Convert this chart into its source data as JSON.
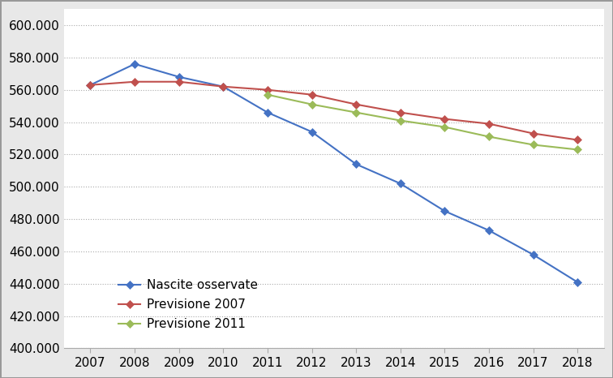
{
  "years": [
    2007,
    2008,
    2009,
    2010,
    2011,
    2012,
    2013,
    2014,
    2015,
    2016,
    2017,
    2018
  ],
  "nascite_osservate": [
    563000,
    576000,
    568000,
    562000,
    546000,
    534000,
    514000,
    502000,
    485000,
    473000,
    458000,
    441000
  ],
  "previsione_2007": [
    563000,
    565000,
    565000,
    562000,
    560000,
    557000,
    551000,
    546000,
    542000,
    539000,
    533000,
    529000
  ],
  "previsione_2011": [
    null,
    null,
    null,
    null,
    557000,
    551000,
    546000,
    541000,
    537000,
    531000,
    526000,
    523000
  ],
  "series_labels": [
    "Nascite osservate",
    "Previsione 2007",
    "Previsione 2011"
  ],
  "colors": [
    "#4472C4",
    "#C0504D",
    "#9BBB59"
  ],
  "ylim": [
    400000,
    610000
  ],
  "yticks": [
    400000,
    420000,
    440000,
    460000,
    480000,
    500000,
    520000,
    540000,
    560000,
    580000,
    600000
  ],
  "background_color": "#FFFFFF",
  "figure_border_color": "#AAAAAA",
  "grid_color": "#AAAAAA",
  "marker_size": 5,
  "linewidth": 1.5,
  "tick_fontsize": 11,
  "legend_fontsize": 11
}
